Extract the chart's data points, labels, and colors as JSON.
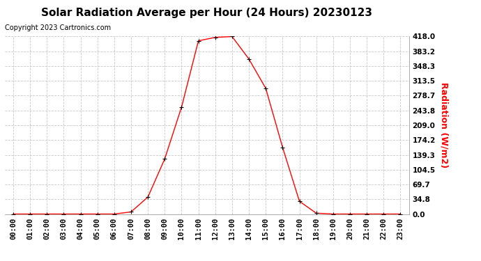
{
  "title": "Solar Radiation Average per Hour (24 Hours) 20230123",
  "copyright_text": "Copyright 2023 Cartronics.com",
  "ylabel": "Radiation (W/m2)",
  "hours": [
    "00:00",
    "01:00",
    "02:00",
    "03:00",
    "04:00",
    "05:00",
    "06:00",
    "07:00",
    "08:00",
    "09:00",
    "10:00",
    "11:00",
    "12:00",
    "13:00",
    "14:00",
    "15:00",
    "16:00",
    "17:00",
    "18:00",
    "19:00",
    "20:00",
    "21:00",
    "22:00",
    "23:00"
  ],
  "values": [
    0.0,
    0.0,
    0.0,
    0.0,
    0.0,
    0.0,
    0.0,
    5.0,
    40.0,
    130.0,
    252.0,
    408.0,
    416.0,
    418.0,
    365.0,
    296.0,
    157.0,
    30.0,
    2.0,
    0.0,
    0.0,
    0.0,
    0.0,
    0.0
  ],
  "yticks": [
    0.0,
    34.8,
    69.7,
    104.5,
    139.3,
    174.2,
    209.0,
    243.8,
    278.7,
    313.5,
    348.3,
    383.2,
    418.0
  ],
  "ytick_labels": [
    "0.0",
    "34.8",
    "69.7",
    "104.5",
    "139.3",
    "174.2",
    "209.0",
    "243.8",
    "278.7",
    "313.5",
    "348.3",
    "383.2",
    "418.0"
  ],
  "ymax": 418.0,
  "line_color": "#ff0000",
  "marker_color": "#000000",
  "grid_color": "#c8c8c8",
  "background_color": "#ffffff",
  "title_fontsize": 11,
  "copyright_fontsize": 7,
  "ylabel_fontsize": 9,
  "tick_fontsize": 7.5,
  "ylabel_color": "#ff0000",
  "copyright_color": "#000000",
  "title_fontweight": "bold"
}
